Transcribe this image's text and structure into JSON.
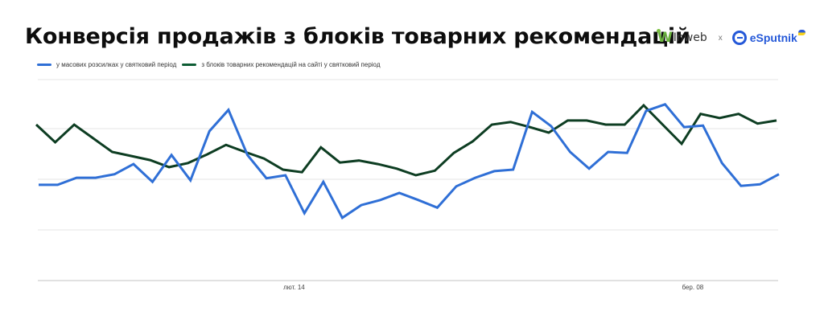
{
  "header": {
    "title": "Конверсія продажів з блоків товарних рекомендацій",
    "logos": {
      "left": "Inweb",
      "separator": "x",
      "right": "eSputnik"
    }
  },
  "chart_data": {
    "type": "line",
    "title": "Конверсія продажів з блоків товарних рекомендацій",
    "xlabel": "",
    "ylabel": "",
    "legend_position": "top-left",
    "grid": true,
    "y_tick_labels_visible": false,
    "ylim": [
      0,
      4
    ],
    "x_tick_labels": [
      {
        "label": "лют. 14",
        "index": 14
      },
      {
        "label": "бер. 08",
        "index": 35
      }
    ],
    "x": [
      1,
      2,
      3,
      4,
      5,
      6,
      7,
      8,
      9,
      10,
      11,
      12,
      13,
      14,
      15,
      16,
      17,
      18,
      19,
      20,
      21,
      22,
      23,
      24,
      25,
      26,
      27,
      28,
      29,
      30,
      31,
      32,
      33,
      34,
      35,
      36,
      37,
      38,
      39,
      40
    ],
    "series": [
      {
        "name": "у масових розсилках у святковий період",
        "color": "#2f6fd6",
        "values": [
          1.89,
          1.89,
          2.03,
          2.03,
          2.1,
          2.3,
          1.95,
          2.48,
          1.98,
          2.95,
          3.37,
          2.48,
          2.02,
          2.08,
          1.33,
          1.95,
          1.24,
          1.49,
          1.59,
          1.73,
          1.59,
          1.44,
          1.86,
          2.03,
          2.16,
          2.19,
          3.33,
          3.05,
          2.54,
          2.21,
          2.54,
          2.52,
          3.35,
          3.48,
          3.03,
          3.06,
          2.32,
          1.87,
          1.9,
          2.1
        ]
      },
      {
        "name": "з блоків товарних рекомендацій на сайті у святковий період",
        "color": "#0d3d22",
        "values": [
          3.08,
          2.73,
          3.08,
          2.81,
          2.54,
          2.46,
          2.38,
          2.24,
          2.32,
          2.49,
          2.68,
          2.54,
          2.41,
          2.19,
          2.14,
          2.63,
          2.33,
          2.37,
          2.3,
          2.21,
          2.08,
          2.17,
          2.52,
          2.75,
          3.08,
          3.13,
          3.03,
          2.92,
          3.16,
          3.16,
          3.08,
          3.08,
          3.46,
          3.08,
          2.7,
          3.29,
          3.21,
          3.29,
          3.1,
          3.16
        ]
      }
    ]
  }
}
